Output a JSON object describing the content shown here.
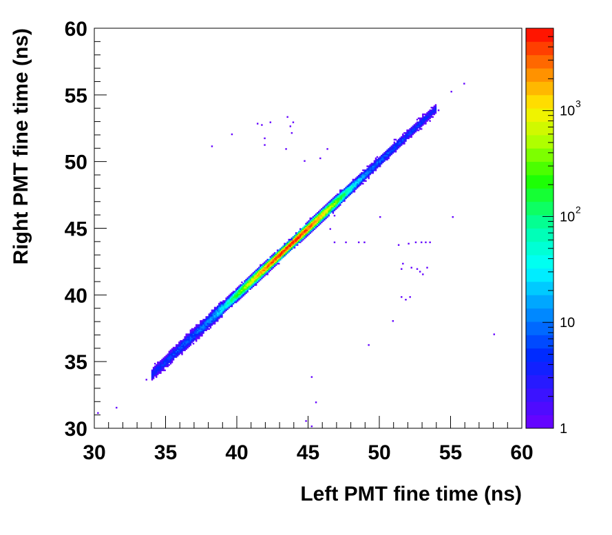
{
  "chart_data": {
    "type": "heatmap",
    "xlabel": "Left PMT fine time (ns)",
    "ylabel": "Right PMT fine time (ns)",
    "xlim": [
      30,
      60
    ],
    "ylim": [
      30,
      60
    ],
    "x_ticks": [
      "30",
      "35",
      "40",
      "45",
      "50",
      "55",
      "60"
    ],
    "y_ticks": [
      "30",
      "35",
      "40",
      "45",
      "50",
      "55",
      "60"
    ],
    "x_tick_values": [
      30,
      35,
      40,
      45,
      50,
      55,
      60
    ],
    "y_tick_values": [
      30,
      35,
      40,
      45,
      50,
      55,
      60
    ],
    "color_scale": "log",
    "z_range": [
      1,
      6000
    ],
    "colorbar_labels": [
      {
        "value": 1,
        "base": "1",
        "exp": ""
      },
      {
        "value": 10,
        "base": "10",
        "exp": ""
      },
      {
        "value": 100,
        "base": "10",
        "exp": "2"
      },
      {
        "value": 1000,
        "base": "10",
        "exp": "3"
      }
    ],
    "band": {
      "x_start": 34.0,
      "x_end": 54.0,
      "slope": 1.0,
      "peak_x": 43.6,
      "peak_count": 5500
    },
    "outliers": [
      [
        30.2,
        31.1
      ],
      [
        31.5,
        31.5
      ],
      [
        33.6,
        33.6
      ],
      [
        38.2,
        51.1
      ],
      [
        39.6,
        52.0
      ],
      [
        41.4,
        52.8
      ],
      [
        41.7,
        52.7
      ],
      [
        41.9,
        51.7
      ],
      [
        41.9,
        51.2
      ],
      [
        42.3,
        52.9
      ],
      [
        43.5,
        53.3
      ],
      [
        43.7,
        52.6
      ],
      [
        43.8,
        52.1
      ],
      [
        43.9,
        52.9
      ],
      [
        43.4,
        50.9
      ],
      [
        44.7,
        50.0
      ],
      [
        45.8,
        50.2
      ],
      [
        46.5,
        44.9
      ],
      [
        46.8,
        45.9
      ],
      [
        46.8,
        43.9
      ],
      [
        47.6,
        43.9
      ],
      [
        48.5,
        43.9
      ],
      [
        48.9,
        43.9
      ],
      [
        50.0,
        45.8
      ],
      [
        51.3,
        43.7
      ],
      [
        52.0,
        43.8
      ],
      [
        52.5,
        43.9
      ],
      [
        52.9,
        43.9
      ],
      [
        53.2,
        43.9
      ],
      [
        53.5,
        43.9
      ],
      [
        51.5,
        41.9
      ],
      [
        51.6,
        42.3
      ],
      [
        52.6,
        41.9
      ],
      [
        52.8,
        41.7
      ],
      [
        53.3,
        42.0
      ],
      [
        52.2,
        42.0
      ],
      [
        51.5,
        39.8
      ],
      [
        51.8,
        39.6
      ],
      [
        52.1,
        39.8
      ],
      [
        53.0,
        41.5
      ],
      [
        50.9,
        38.0
      ],
      [
        49.2,
        36.2
      ],
      [
        45.2,
        33.8
      ],
      [
        45.5,
        31.9
      ],
      [
        44.8,
        30.5
      ],
      [
        45.2,
        30.1
      ],
      [
        55.0,
        55.2
      ],
      [
        55.9,
        55.8
      ],
      [
        55.1,
        45.8
      ],
      [
        58.0,
        37.0
      ],
      [
        54.1,
        53.8
      ],
      [
        46.3,
        50.9
      ],
      [
        43.8,
        44.1
      ]
    ]
  }
}
